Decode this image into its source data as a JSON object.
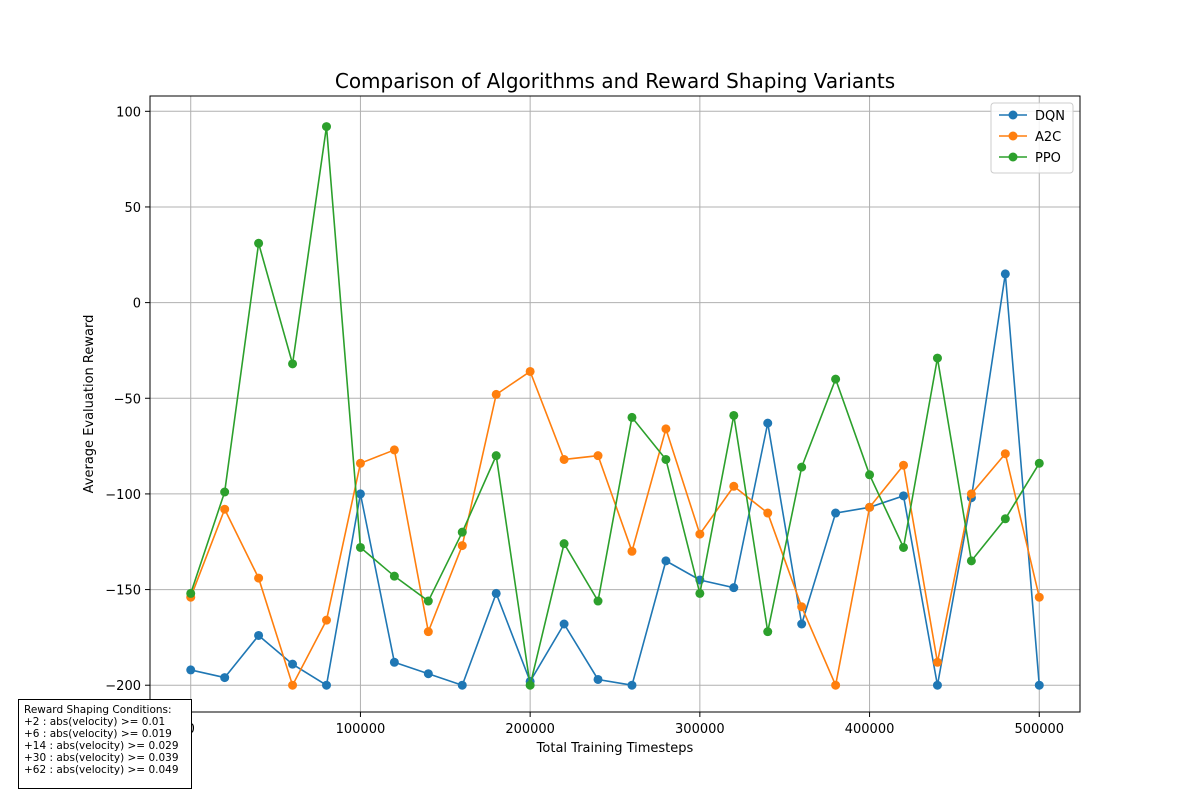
{
  "chart_data": {
    "type": "line",
    "title": "Comparison of Algorithms and Reward Shaping Variants",
    "xlabel": "Total Training Timesteps",
    "ylabel": "Average Evaluation Reward",
    "xlim": [
      -24000,
      524000
    ],
    "ylim": [
      -214,
      108
    ],
    "x_ticks": [
      0,
      100000,
      200000,
      300000,
      400000,
      500000
    ],
    "x_tick_labels": [
      "0",
      "100000",
      "200000",
      "300000",
      "400000",
      "500000"
    ],
    "y_ticks": [
      100,
      50,
      0,
      -50,
      -100,
      -150,
      -200
    ],
    "y_tick_labels": [
      "100",
      "50",
      "0",
      "−50",
      "−100",
      "−150",
      "−200"
    ],
    "grid": true,
    "legend_position": "top-right",
    "x": [
      0,
      20000,
      40000,
      60000,
      80000,
      100000,
      120000,
      140000,
      160000,
      180000,
      200000,
      220000,
      240000,
      260000,
      280000,
      300000,
      320000,
      340000,
      360000,
      380000,
      400000,
      420000,
      440000,
      460000,
      480000,
      500000
    ],
    "series": [
      {
        "name": "DQN",
        "color": "#1f77b4",
        "values": [
          -192,
          -196,
          -174,
          -189,
          -200,
          -100,
          -188,
          -194,
          -200,
          -152,
          -198,
          -168,
          -197,
          -200,
          -135,
          -145,
          -149,
          -63,
          -168,
          -110,
          -107,
          -101,
          -200,
          -102,
          15,
          -200
        ]
      },
      {
        "name": "A2C",
        "color": "#ff7f0e",
        "values": [
          -154,
          -108,
          -144,
          -200,
          -166,
          -84,
          -77,
          -172,
          -127,
          -48,
          -36,
          -82,
          -80,
          -130,
          -66,
          -121,
          -96,
          -110,
          -159,
          -200,
          -107,
          -85,
          -188,
          -100,
          -79,
          -154
        ]
      },
      {
        "name": "PPO",
        "color": "#2ca02c",
        "values": [
          -152,
          -99,
          31,
          -32,
          92,
          -128,
          -143,
          -156,
          -120,
          -80,
          -200,
          -126,
          -156,
          -60,
          -82,
          -152,
          -59,
          -172,
          -86,
          -40,
          -90,
          -128,
          -29,
          -135,
          -113,
          -84
        ]
      }
    ],
    "annotation": {
      "title": "Reward Shaping Conditions:",
      "lines": [
        "+2 : abs(velocity) >= 0.01",
        "+6 : abs(velocity) >= 0.019",
        "+14 : abs(velocity) >= 0.029",
        "+30 : abs(velocity) >= 0.039",
        "+62 : abs(velocity) >= 0.049"
      ]
    }
  }
}
